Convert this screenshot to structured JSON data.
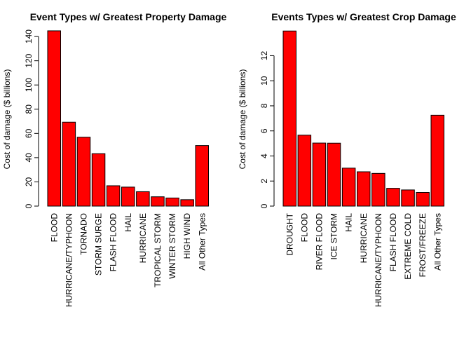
{
  "chart_data": [
    {
      "type": "bar",
      "title": "Event Types w/ Greatest Property Damage",
      "xlabel": "",
      "ylabel": "Cost of damage ($ billions)",
      "ylim": [
        0,
        145
      ],
      "yticks": [
        "0",
        "20",
        "40",
        "60",
        "80",
        "100",
        "120",
        "140"
      ],
      "bar_color": "#ff0000",
      "categories": [
        "FLOOD",
        "HURRICANE/TYPHOON",
        "TORNADO",
        "STORM SURGE",
        "FLASH FLOOD",
        "HAIL",
        "HURRICANE",
        "TROPICAL STORM",
        "WINTER STORM",
        "HIGH WIND",
        "All Other Types"
      ],
      "values": [
        144.7,
        69.3,
        56.9,
        43.3,
        16.8,
        15.7,
        11.9,
        7.7,
        6.7,
        5.3,
        50.0
      ]
    },
    {
      "type": "bar",
      "title": "Events Types w/ Greatest Crop Damage",
      "xlabel": "",
      "ylabel": "Cost of damage ($ billions)",
      "ylim": [
        0,
        14
      ],
      "yticks": [
        "0",
        "2",
        "4",
        "6",
        "8",
        "10",
        "12"
      ],
      "bar_color": "#ff0000",
      "categories": [
        "DROUGHT",
        "FLOOD",
        "RIVER FLOOD",
        "ICE STORM",
        "HAIL",
        "HURRICANE",
        "HURRICANE/TYPHOON",
        "FLASH FLOOD",
        "EXTREME COLD",
        "FROST/FREEZE",
        "All Other Types"
      ],
      "values": [
        13.97,
        5.66,
        5.03,
        5.02,
        3.03,
        2.74,
        2.61,
        1.42,
        1.29,
        1.09,
        7.25
      ]
    }
  ]
}
